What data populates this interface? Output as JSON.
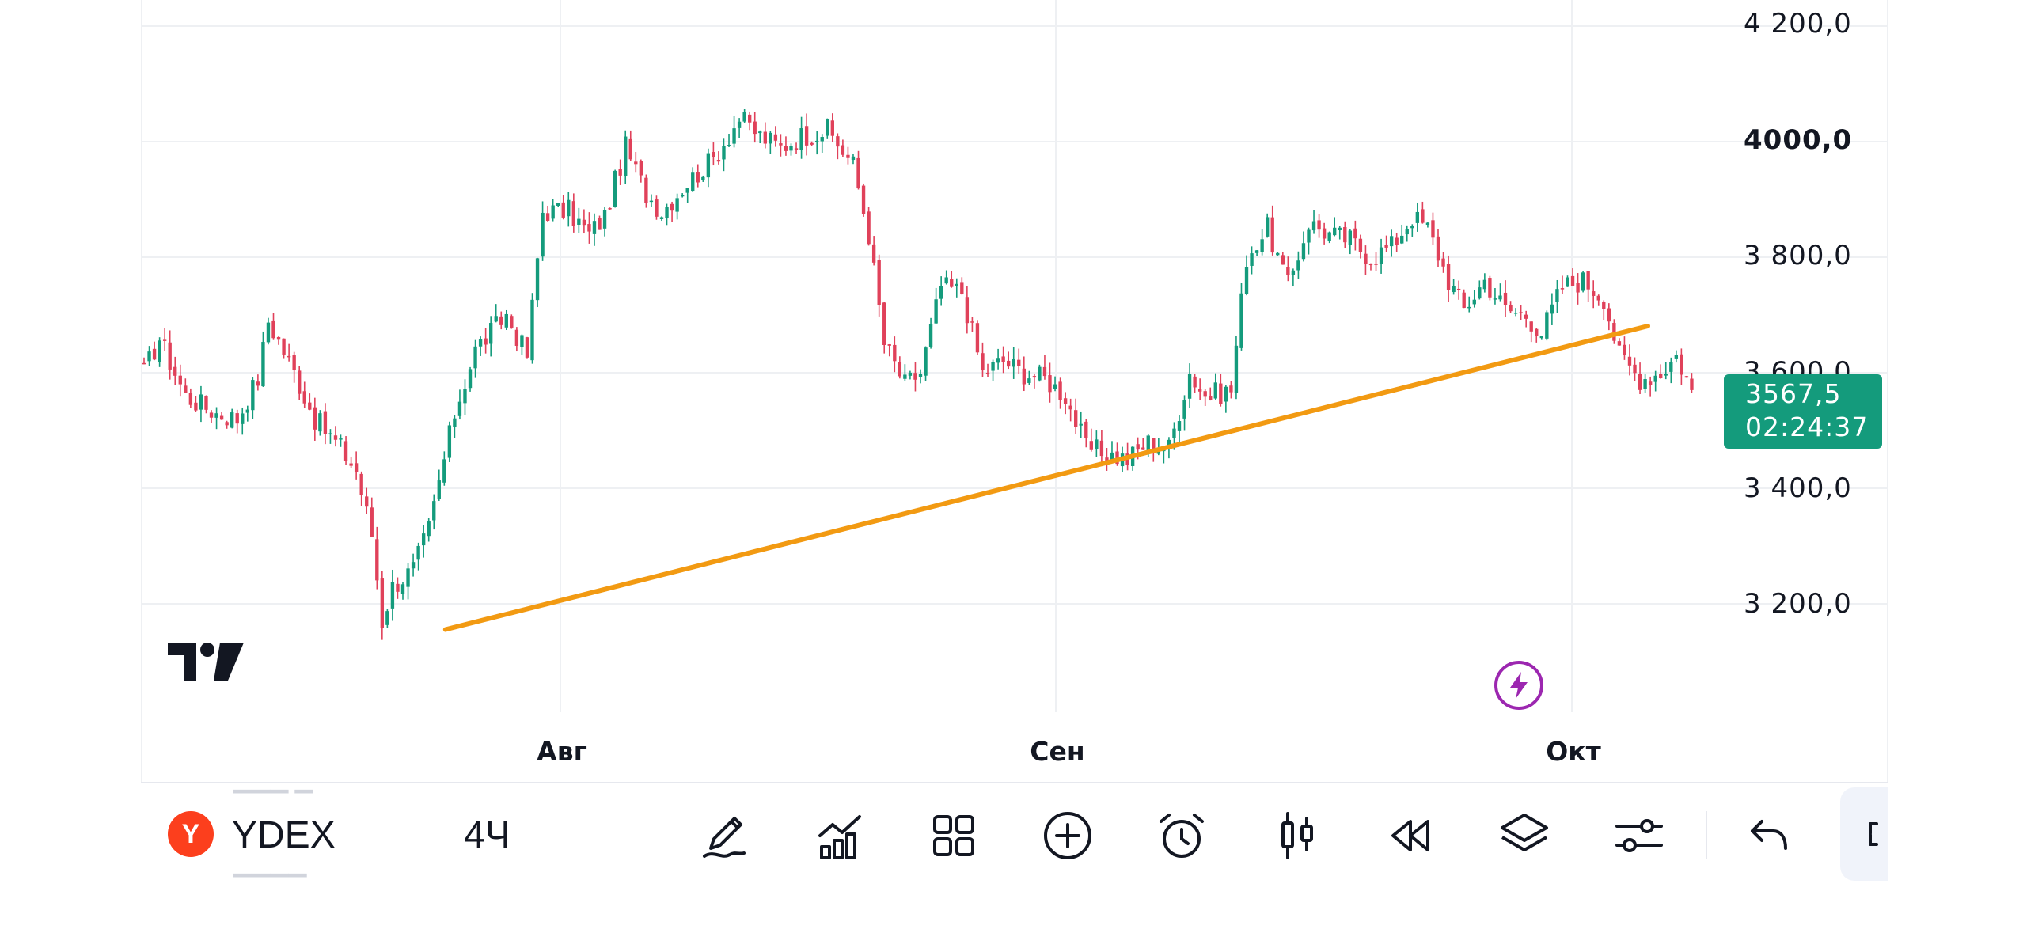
{
  "chart": {
    "symbol": "YDEX",
    "symbol_badge_letter": "Y",
    "interval": "4Ч",
    "price_axis": [
      "4 200,0",
      "4000,0",
      "3 800,0",
      "3 600,0",
      "3 400,0",
      "3 200,0"
    ],
    "time_axis": [
      "Авг",
      "Сен",
      "Окт"
    ],
    "last_price": "3567,5",
    "countdown": "02:24:37",
    "colors": {
      "up": "#149b7c",
      "down": "#e0415a",
      "trendline": "#f29a12",
      "grid": "#eef0f3",
      "alert_icon": "#9c27b0",
      "symbol_badge": "#fc3f1d"
    }
  },
  "chart_data": {
    "type": "candlestick",
    "ylim": [
      3100,
      4240
    ],
    "y_ticks": [
      3200,
      3400,
      3600,
      3800,
      4000,
      4200
    ],
    "x_ticks": [
      "Авг",
      "Сен",
      "Окт"
    ],
    "last_price": 3567.5,
    "path_points": [
      [
        0,
        3600
      ],
      [
        3,
        3660
      ],
      [
        8,
        3560
      ],
      [
        14,
        3530
      ],
      [
        18,
        3520
      ],
      [
        22,
        3590
      ],
      [
        24,
        3690
      ],
      [
        28,
        3620
      ],
      [
        33,
        3520
      ],
      [
        38,
        3470
      ],
      [
        41,
        3430
      ],
      [
        44,
        3320
      ],
      [
        46,
        3170
      ],
      [
        48,
        3230
      ],
      [
        52,
        3260
      ],
      [
        55,
        3330
      ],
      [
        60,
        3530
      ],
      [
        64,
        3640
      ],
      [
        70,
        3700
      ],
      [
        74,
        3630
      ],
      [
        77,
        3880
      ],
      [
        82,
        3880
      ],
      [
        86,
        3840
      ],
      [
        89,
        3870
      ],
      [
        93,
        3990
      ],
      [
        97,
        3910
      ],
      [
        100,
        3880
      ],
      [
        105,
        3930
      ],
      [
        110,
        3970
      ],
      [
        115,
        4040
      ],
      [
        119,
        4010
      ],
      [
        123,
        3990
      ],
      [
        127,
        4010
      ],
      [
        132,
        4020
      ],
      [
        137,
        3960
      ],
      [
        140,
        3840
      ],
      [
        143,
        3650
      ],
      [
        147,
        3580
      ],
      [
        150,
        3600
      ],
      [
        154,
        3750
      ],
      [
        158,
        3740
      ],
      [
        162,
        3600
      ],
      [
        166,
        3620
      ],
      [
        170,
        3600
      ],
      [
        174,
        3590
      ],
      [
        178,
        3560
      ],
      [
        182,
        3470
      ],
      [
        186,
        3460
      ],
      [
        190,
        3450
      ],
      [
        194,
        3480
      ],
      [
        198,
        3470
      ],
      [
        202,
        3600
      ],
      [
        205,
        3560
      ],
      [
        210,
        3570
      ],
      [
        213,
        3800
      ],
      [
        217,
        3850
      ],
      [
        221,
        3750
      ],
      [
        225,
        3860
      ],
      [
        229,
        3840
      ],
      [
        233,
        3830
      ],
      [
        237,
        3800
      ],
      [
        241,
        3820
      ],
      [
        245,
        3870
      ],
      [
        248,
        3850
      ],
      [
        252,
        3760
      ],
      [
        255,
        3710
      ],
      [
        259,
        3760
      ],
      [
        263,
        3710
      ],
      [
        267,
        3700
      ],
      [
        270,
        3670
      ],
      [
        274,
        3750
      ],
      [
        278,
        3760
      ],
      [
        282,
        3730
      ],
      [
        285,
        3630
      ],
      [
        289,
        3590
      ],
      [
        293,
        3600
      ],
      [
        296,
        3630
      ],
      [
        299,
        3570
      ]
    ],
    "trendline": {
      "start": [
        46,
        3150
      ],
      "end": [
        320,
        3680
      ]
    }
  },
  "toolbar": {
    "tools": [
      {
        "name": "drawing-tools-button"
      },
      {
        "name": "indicators-button"
      },
      {
        "name": "layouts-button"
      },
      {
        "name": "add-button"
      },
      {
        "name": "alert-button"
      },
      {
        "name": "chart-type-button"
      },
      {
        "name": "replay-button"
      },
      {
        "name": "layers-button"
      },
      {
        "name": "settings-button"
      },
      {
        "name": "undo-button"
      }
    ]
  }
}
